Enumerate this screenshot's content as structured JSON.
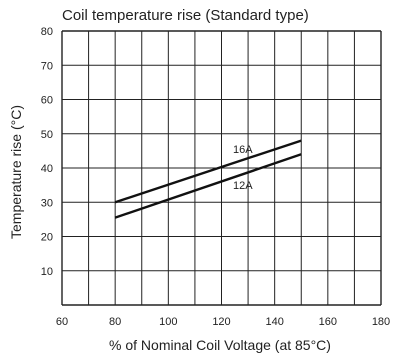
{
  "chart_data": {
    "type": "line",
    "title": "Coil temperature rise (Standard type)",
    "xlabel": "% of Nominal Coil Voltage (at 85°C)",
    "ylabel": "Temperature rise (°C)",
    "xlim": [
      60,
      180
    ],
    "ylim": [
      0,
      80
    ],
    "xticks": [
      60,
      80,
      100,
      120,
      140,
      160,
      180
    ],
    "yticks": [
      10,
      20,
      30,
      40,
      50,
      60,
      70,
      80
    ],
    "grid": true,
    "minor_x_grid_step": 10,
    "series": [
      {
        "name": "16A",
        "x": [
          80,
          150
        ],
        "y": [
          30,
          48
        ]
      },
      {
        "name": "12A",
        "x": [
          80,
          150
        ],
        "y": [
          25.5,
          44
        ]
      }
    ],
    "line_color": "#111111",
    "grid_color": "#222222"
  }
}
